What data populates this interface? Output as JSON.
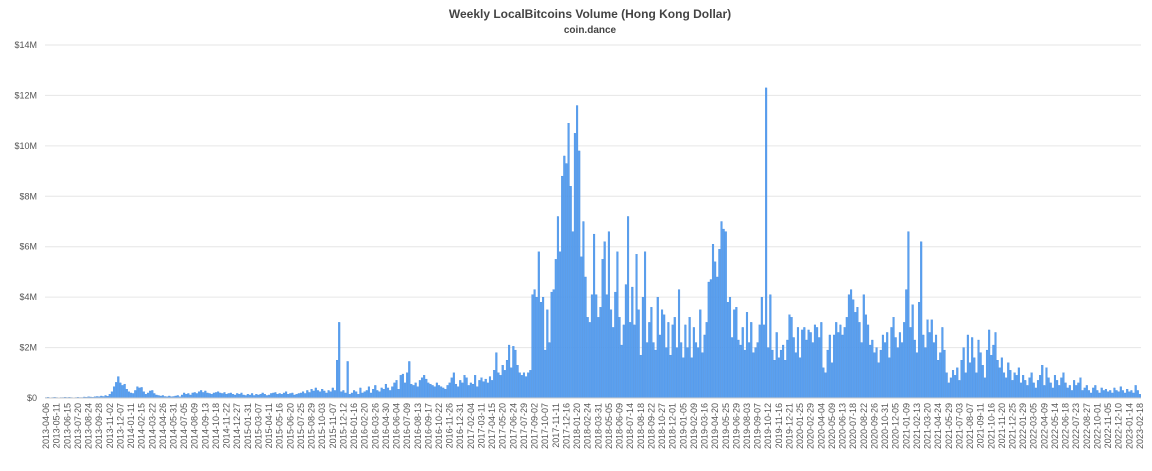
{
  "chart_data": {
    "type": "bar",
    "title": "Weekly LocalBitcoins Volume (Hong Kong Dollar)",
    "subtitle": "coin.dance",
    "color": "#5aa0f0",
    "grid": true,
    "ylim": [
      0,
      14
    ],
    "yticks": [
      {
        "value": 0,
        "label": "$0"
      },
      {
        "value": 2,
        "label": "$2M"
      },
      {
        "value": 4,
        "label": "$4M"
      },
      {
        "value": 6,
        "label": "$6M"
      },
      {
        "value": 8,
        "label": "$8M"
      },
      {
        "value": 10,
        "label": "$10M"
      },
      {
        "value": 12,
        "label": "$12M"
      },
      {
        "value": 14,
        "label": "$14M"
      }
    ],
    "categories": [
      "2013-04-06",
      null,
      null,
      null,
      null,
      "2013-05-11",
      null,
      null,
      null,
      null,
      "2013-06-15",
      null,
      null,
      null,
      null,
      "2013-07-20",
      null,
      null,
      null,
      null,
      "2013-08-24",
      null,
      null,
      null,
      null,
      "2013-09-28",
      null,
      null,
      null,
      null,
      "2013-11-02",
      null,
      null,
      null,
      null,
      "2013-12-07",
      null,
      null,
      null,
      null,
      "2014-01-11",
      null,
      null,
      null,
      null,
      "2014-02-15",
      null,
      null,
      null,
      null,
      "2014-03-22",
      null,
      null,
      null,
      null,
      "2014-04-26",
      null,
      null,
      null,
      null,
      "2014-05-31",
      null,
      null,
      null,
      null,
      "2014-07-05",
      null,
      null,
      null,
      null,
      "2014-08-09",
      null,
      null,
      null,
      null,
      "2014-09-13",
      null,
      null,
      null,
      null,
      "2014-10-18",
      null,
      null,
      null,
      null,
      "2014-11-22",
      null,
      null,
      null,
      null,
      "2014-12-27",
      null,
      null,
      null,
      null,
      "2015-01-31",
      null,
      null,
      null,
      null,
      "2015-03-07",
      null,
      null,
      null,
      null,
      "2015-04-11",
      null,
      null,
      null,
      null,
      "2015-05-16",
      null,
      null,
      null,
      null,
      "2015-06-20",
      null,
      null,
      null,
      null,
      "2015-07-25",
      null,
      null,
      null,
      null,
      "2015-08-29",
      null,
      null,
      null,
      null,
      "2015-10-03",
      null,
      null,
      null,
      null,
      "2015-11-07",
      null,
      null,
      null,
      null,
      "2015-12-12",
      null,
      null,
      null,
      null,
      "2016-01-16",
      null,
      null,
      null,
      null,
      "2016-02-20",
      null,
      null,
      null,
      null,
      "2016-03-26",
      null,
      null,
      null,
      null,
      "2016-04-30",
      null,
      null,
      null,
      null,
      "2016-06-04",
      null,
      null,
      null,
      null,
      "2016-07-09",
      null,
      null,
      null,
      null,
      "2016-08-13",
      null,
      null,
      null,
      null,
      "2016-09-17",
      null,
      null,
      null,
      null,
      "2016-10-22",
      null,
      null,
      null,
      null,
      "2016-11-26",
      null,
      null,
      null,
      null,
      "2016-12-31",
      null,
      null,
      null,
      null,
      "2017-02-04",
      null,
      null,
      null,
      null,
      "2017-03-11",
      null,
      null,
      null,
      null,
      "2017-04-15",
      null,
      null,
      null,
      null,
      "2017-05-20",
      null,
      null,
      null,
      null,
      "2017-06-24",
      null,
      null,
      null,
      null,
      "2017-07-29",
      null,
      null,
      null,
      null,
      "2017-09-02",
      null,
      null,
      null,
      null,
      "2017-10-07",
      null,
      null,
      null,
      null,
      "2017-11-11",
      null,
      null,
      null,
      null,
      "2017-12-16",
      null,
      null,
      null,
      null,
      "2018-01-20",
      null,
      null,
      null,
      null,
      "2018-02-24",
      null,
      null,
      null,
      null,
      "2018-03-31",
      null,
      null,
      null,
      null,
      "2018-05-05",
      null,
      null,
      null,
      null,
      "2018-06-09",
      null,
      null,
      null,
      null,
      "2018-07-14",
      null,
      null,
      null,
      null,
      "2018-08-18",
      null,
      null,
      null,
      null,
      "2018-09-22",
      null,
      null,
      null,
      null,
      "2018-10-27",
      null,
      null,
      null,
      null,
      "2018-12-01",
      null,
      null,
      null,
      null,
      "2019-01-05",
      null,
      null,
      null,
      null,
      "2019-02-09",
      null,
      null,
      null,
      null,
      "2019-03-16",
      null,
      null,
      null,
      null,
      "2019-04-20",
      null,
      null,
      null,
      null,
      "2019-05-25",
      null,
      null,
      null,
      null,
      "2019-06-29",
      null,
      null,
      null,
      null,
      "2019-08-03",
      null,
      null,
      null,
      null,
      "2019-09-07",
      null,
      null,
      null,
      null,
      "2019-10-12",
      null,
      null,
      null,
      null,
      "2019-11-16",
      null,
      null,
      null,
      null,
      "2019-12-21",
      null,
      null,
      null,
      null,
      "2020-01-25",
      null,
      null,
      null,
      null,
      "2020-02-29",
      null,
      null,
      null,
      null,
      "2020-04-04",
      null,
      null,
      null,
      null,
      "2020-05-09",
      null,
      null,
      null,
      null,
      "2020-06-13",
      null,
      null,
      null,
      null,
      "2020-07-18",
      null,
      null,
      null,
      null,
      "2020-08-22",
      null,
      null,
      null,
      null,
      "2020-09-26",
      null,
      null,
      null,
      null,
      "2020-10-31",
      null,
      null,
      null,
      null,
      "2020-12-05",
      null,
      null,
      null,
      null,
      "2021-01-09",
      null,
      null,
      null,
      null,
      "2021-02-13",
      null,
      null,
      null,
      null,
      "2021-03-20",
      null,
      null,
      null,
      null,
      "2021-04-24",
      null,
      null,
      null,
      null,
      "2021-05-29",
      null,
      null,
      null,
      null,
      "2021-07-03",
      null,
      null,
      null,
      null,
      "2021-08-07",
      null,
      null,
      null,
      null,
      "2021-09-11",
      null,
      null,
      null,
      null,
      "2021-10-16",
      null,
      null,
      null,
      null,
      "2021-11-20",
      null,
      null,
      null,
      null,
      "2021-12-25",
      null,
      null,
      null,
      null,
      "2022-01-29",
      null,
      null,
      null,
      null,
      "2022-03-05",
      null,
      null,
      null,
      null,
      "2022-04-09",
      null,
      null,
      null,
      null,
      "2022-05-14",
      null,
      null,
      null,
      null,
      "2022-06-18",
      null,
      null,
      null,
      null,
      "2022-07-23",
      null,
      null,
      null,
      null,
      "2022-08-27",
      null,
      null,
      null,
      null,
      "2022-10-01",
      null,
      null,
      null,
      null,
      "2022-11-05",
      null,
      null,
      null,
      null,
      "2022-12-10",
      null,
      null,
      null,
      null,
      "2023-01-14",
      null,
      null,
      null,
      null,
      "2023-02-18"
    ],
    "values": [
      0.02,
      0.03,
      0.01,
      0.02,
      0.03,
      0.02,
      0.01,
      0.02,
      0.02,
      0.03,
      0.02,
      0.03,
      0.02,
      0.01,
      0.02,
      0.03,
      0.02,
      0.02,
      0.04,
      0.03,
      0.05,
      0.04,
      0.03,
      0.05,
      0.06,
      0.05,
      0.08,
      0.06,
      0.1,
      0.07,
      0.15,
      0.25,
      0.45,
      0.62,
      0.85,
      0.6,
      0.5,
      0.55,
      0.35,
      0.25,
      0.2,
      0.18,
      0.3,
      0.45,
      0.4,
      0.42,
      0.25,
      0.15,
      0.2,
      0.28,
      0.3,
      0.18,
      0.12,
      0.1,
      0.08,
      0.1,
      0.06,
      0.05,
      0.08,
      0.05,
      0.06,
      0.08,
      0.1,
      0.05,
      0.12,
      0.2,
      0.15,
      0.18,
      0.12,
      0.2,
      0.22,
      0.18,
      0.25,
      0.3,
      0.22,
      0.28,
      0.2,
      0.18,
      0.15,
      0.2,
      0.22,
      0.25,
      0.2,
      0.18,
      0.22,
      0.15,
      0.18,
      0.2,
      0.15,
      0.12,
      0.18,
      0.15,
      0.2,
      0.12,
      0.1,
      0.15,
      0.12,
      0.18,
      0.1,
      0.15,
      0.12,
      0.15,
      0.2,
      0.15,
      0.1,
      0.12,
      0.18,
      0.2,
      0.22,
      0.15,
      0.18,
      0.15,
      0.2,
      0.25,
      0.15,
      0.18,
      0.2,
      0.12,
      0.15,
      0.18,
      0.2,
      0.25,
      0.18,
      0.3,
      0.22,
      0.35,
      0.28,
      0.4,
      0.3,
      0.25,
      0.35,
      0.28,
      0.2,
      0.3,
      0.25,
      0.4,
      0.3,
      1.5,
      3.0,
      0.25,
      0.3,
      0.2,
      1.45,
      0.15,
      0.2,
      0.3,
      0.25,
      0.15,
      0.4,
      0.2,
      0.25,
      0.3,
      0.45,
      0.2,
      0.35,
      0.5,
      0.3,
      0.25,
      0.4,
      0.35,
      0.55,
      0.4,
      0.3,
      0.45,
      0.6,
      0.7,
      0.35,
      0.9,
      0.95,
      0.6,
      1.0,
      1.45,
      0.55,
      0.5,
      0.6,
      0.45,
      0.7,
      0.8,
      0.9,
      0.75,
      0.6,
      0.55,
      0.5,
      0.45,
      0.6,
      0.5,
      0.45,
      0.4,
      0.35,
      0.5,
      0.6,
      0.8,
      1.0,
      0.55,
      0.45,
      0.7,
      0.6,
      0.9,
      0.8,
      0.5,
      0.6,
      0.55,
      0.9,
      0.45,
      0.7,
      0.8,
      0.65,
      0.75,
      0.6,
      0.85,
      0.7,
      1.1,
      1.8,
      1.0,
      0.9,
      1.3,
      1.1,
      1.5,
      2.1,
      1.2,
      2.05,
      1.9,
      1.3,
      1.0,
      0.9,
      1.0,
      0.85,
      1.0,
      1.1,
      4.1,
      4.3,
      4.0,
      5.8,
      3.8,
      4.0,
      1.9,
      3.5,
      2.2,
      4.2,
      4.3,
      5.5,
      7.2,
      5.8,
      8.8,
      9.6,
      9.3,
      10.9,
      8.4,
      6.6,
      10.5,
      11.6,
      9.8,
      5.6,
      7.0,
      4.8,
      3.2,
      3.0,
      4.1,
      6.5,
      4.1,
      3.2,
      3.6,
      5.5,
      6.2,
      4.1,
      6.6,
      3.5,
      2.8,
      4.2,
      5.8,
      3.2,
      2.1,
      2.9,
      4.5,
      7.2,
      3.0,
      4.4,
      2.9,
      5.7,
      3.5,
      1.7,
      4.0,
      5.8,
      2.2,
      3.0,
      3.6,
      2.2,
      1.9,
      4.0,
      2.5,
      3.5,
      3.3,
      2.0,
      3.0,
      1.7,
      2.9,
      3.2,
      2.0,
      4.3,
      2.2,
      1.6,
      2.9,
      2.0,
      3.2,
      1.6,
      2.8,
      2.2,
      2.0,
      3.5,
      1.8,
      2.5,
      3.0,
      4.6,
      4.7,
      6.1,
      5.4,
      4.8,
      5.9,
      7.0,
      6.7,
      6.6,
      3.8,
      4.0,
      2.4,
      3.5,
      3.6,
      2.3,
      2.1,
      2.8,
      1.9,
      3.4,
      2.2,
      3.0,
      1.8,
      2.0,
      2.2,
      2.9,
      4.0,
      2.9,
      12.3,
      2.0,
      4.1,
      1.9,
      1.5,
      2.6,
      1.6,
      1.9,
      2.1,
      1.5,
      2.3,
      3.3,
      3.2,
      2.4,
      1.8,
      2.8,
      1.6,
      2.7,
      2.8,
      2.3,
      2.7,
      2.6,
      2.2,
      2.9,
      2.8,
      2.4,
      3.0,
      1.2,
      1.0,
      1.9,
      2.5,
      1.4,
      2.5,
      3.0,
      2.6,
      2.9,
      2.5,
      2.8,
      3.2,
      4.1,
      4.3,
      3.9,
      3.4,
      3.6,
      3.0,
      2.2,
      4.1,
      3.3,
      2.9,
      2.1,
      2.3,
      1.8,
      2.0,
      1.4,
      1.9,
      2.5,
      2.2,
      2.6,
      1.6,
      2.8,
      3.2,
      2.4,
      2.0,
      2.6,
      2.2,
      3.0,
      4.3,
      6.6,
      2.8,
      3.7,
      2.3,
      1.8,
      3.8,
      6.2,
      2.5,
      2.0,
      3.1,
      2.6,
      3.1,
      2.2,
      2.5,
      1.5,
      1.8,
      2.8,
      1.9,
      1.0,
      0.6,
      0.8,
      1.1,
      0.9,
      1.2,
      0.7,
      1.5,
      2.0,
      1.0,
      2.5,
      1.4,
      2.4,
      1.6,
      1.0,
      2.3,
      1.8,
      1.3,
      0.8,
      1.9,
      2.7,
      1.7,
      2.1,
      2.6,
      1.5,
      1.2,
      1.6,
      1.0,
      0.8,
      1.4,
      1.1,
      0.7,
      1.0,
      0.9,
      1.2,
      0.6,
      0.9,
      0.7,
      0.5,
      0.8,
      1.0,
      0.6,
      0.4,
      0.7,
      0.9,
      1.3,
      0.5,
      1.2,
      0.8,
      0.6,
      0.4,
      0.9,
      0.7,
      0.5,
      0.8,
      1.0,
      0.6,
      0.4,
      0.5,
      0.3,
      0.7,
      0.5,
      0.6,
      0.8,
      0.3,
      0.4,
      0.5,
      0.3,
      0.2,
      0.4,
      0.5,
      0.3,
      0.2,
      0.4,
      0.3,
      0.35,
      0.25,
      0.3,
      0.2,
      0.4,
      0.3,
      0.25,
      0.45,
      0.3,
      0.2,
      0.35,
      0.25,
      0.3,
      0.2,
      0.5,
      0.3,
      0.15
    ]
  }
}
